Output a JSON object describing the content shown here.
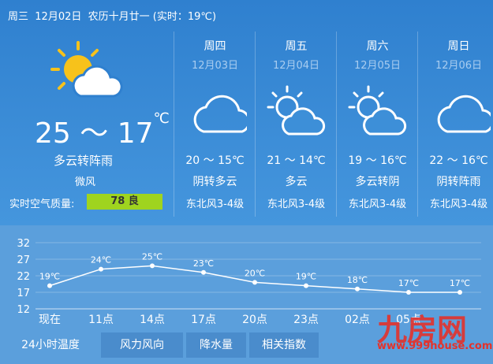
{
  "header": {
    "day": "周三",
    "date": "12月02日",
    "lunar": "农历十月廿一",
    "realtime": "(实时：19℃)"
  },
  "today": {
    "temp": "25 ～ 17",
    "unit": "℃",
    "weather": "多云转阵雨",
    "wind": "微风",
    "aqi_label": "实时空气质量:",
    "aqi": "78 良"
  },
  "forecast": [
    {
      "day": "周四",
      "date": "12月03日",
      "temp": "20 ～ 15℃",
      "weather": "阴转多云",
      "wind": "东北风3-4级"
    },
    {
      "day": "周五",
      "date": "12月04日",
      "temp": "21 ～ 14℃",
      "weather": "多云",
      "wind": "东北风3-4级"
    },
    {
      "day": "周六",
      "date": "12月05日",
      "temp": "19 ～ 16℃",
      "weather": "多云转阴",
      "wind": "东北风3-4级"
    },
    {
      "day": "周日",
      "date": "12月06日",
      "temp": "22 ～ 16℃",
      "weather": "阴转阵雨",
      "wind": "东北风3-4级"
    }
  ],
  "chart_data": {
    "type": "line",
    "categories": [
      "现在",
      "11点",
      "14点",
      "17点",
      "20点",
      "23点",
      "02点",
      "05点",
      null
    ],
    "series": [
      {
        "color": "#ffffff",
        "values": [
          19,
          24,
          25,
          23,
          20,
          19,
          18,
          17,
          17
        ],
        "value_labels": [
          "19℃",
          "24℃",
          "25℃",
          "23℃",
          "20℃",
          "19℃",
          "18℃",
          "17℃",
          "17℃"
        ]
      }
    ],
    "ylim": [
      12,
      32
    ],
    "yticks": [
      12,
      17,
      22,
      27,
      32
    ],
    "grid": true
  },
  "tabs": [
    "24小时温度",
    "风力风向",
    "降水量",
    "相关指数"
  ],
  "watermark": {
    "logo": "九房网",
    "url": "www.999house.com"
  }
}
